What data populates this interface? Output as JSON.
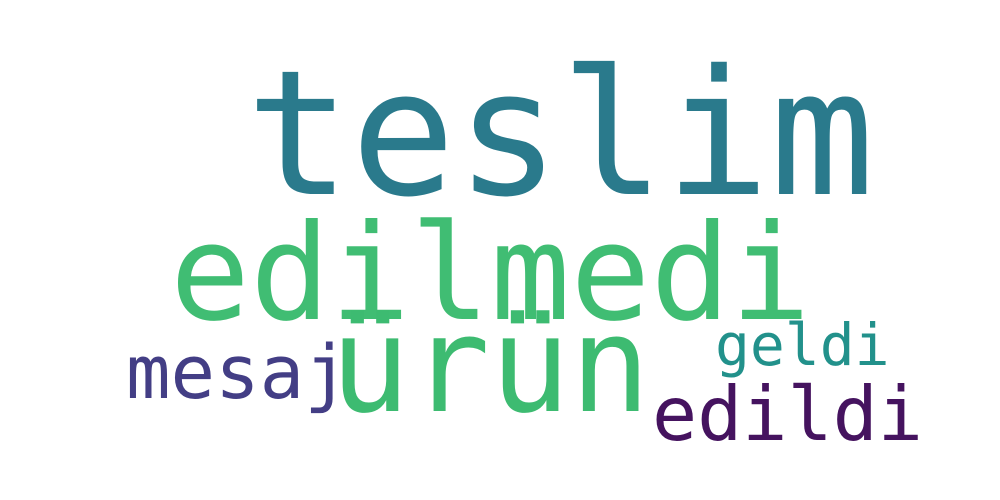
{
  "words": [
    {
      "id": "teslim",
      "text": "teslim",
      "color": "#2a7a8c"
    },
    {
      "id": "edilmedi",
      "text": "edilmedi",
      "color": "#40bd73"
    },
    {
      "id": "urun",
      "text": "ürün",
      "color": "#3dbb71"
    },
    {
      "id": "mesaj",
      "text": "mesaj",
      "color": "#433e85"
    },
    {
      "id": "geldi",
      "text": "geldi",
      "color": "#22918b"
    },
    {
      "id": "edildi",
      "text": "edildi",
      "color": "#45135f"
    }
  ]
}
